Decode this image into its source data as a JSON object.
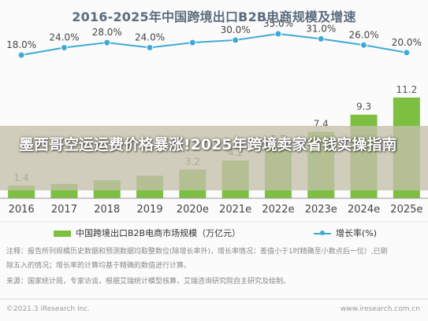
{
  "chart_data": {
    "type": "bar",
    "title": "2016-2025年中国跨境出口B2B电商规模及增速",
    "categories": [
      "2016",
      "2017",
      "2018",
      "2019",
      "2020e",
      "2021e",
      "2022e",
      "2023e",
      "2024e",
      "2025e"
    ],
    "series": [
      {
        "name": "中国跨境出口B2B电商市场规模（万亿元）",
        "type": "bar",
        "color": "#7dc041",
        "values": [
          1.4,
          1.6,
          2.0,
          2.5,
          3.2,
          4.2,
          5.7,
          7.4,
          9.3,
          11.2
        ],
        "labels": [
          "1.4",
          "",
          "",
          "",
          "3.2",
          "4.2",
          "5.7",
          "7.4",
          "9.3",
          "11.2"
        ]
      },
      {
        "name": "增长率(%)",
        "type": "line",
        "color": "#3fa9d6",
        "values": [
          18.0,
          24.0,
          28.0,
          24.0,
          28.0,
          30.0,
          35.0,
          31.0,
          26.0,
          20.0
        ],
        "labels": [
          "18.0%",
          "24.0%",
          "28.0%",
          "24.0%",
          "",
          "30.0%",
          "35.0%",
          "31.0%",
          "26.0%",
          "20.0%"
        ]
      }
    ],
    "legend_position": "bottom",
    "grid": false
  },
  "banner": {
    "headline": "墨西哥空运运费价格暴涨!2025年跨境卖家省钱实操指南"
  },
  "notes": {
    "line1": "注释：报告所列规模历史数据和预测数据均取整数位(除增长率外)，增长率情况：差值小于1时精确至小数点后一位）,已剔",
    "line2": "除五入的情况；增长率的计算均基于精确的数值进行计算。",
    "line3": "来源：国家统计局，专家访谈，根据艾瑞统计模型核算，艾瑞咨询研究院自主研究及绘制。"
  },
  "footer": {
    "left": "©2021.3 iResearch Inc.",
    "right": "www.iresearch.com.cn"
  }
}
